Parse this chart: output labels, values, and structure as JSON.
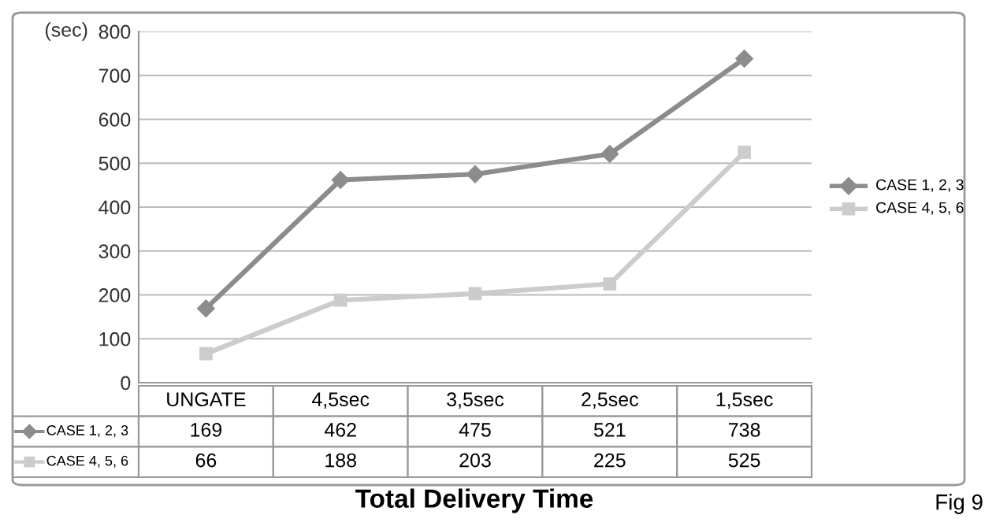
{
  "chart_data": {
    "type": "line",
    "title": "Total Delivery Time",
    "ylabel": "(sec)",
    "categories": [
      "UNGATE",
      "4,5sec",
      "3,5sec",
      "2,5sec",
      "1,5sec"
    ],
    "series": [
      {
        "name": "CASE 1, 2, 3",
        "color": "#8c8c8c",
        "marker": "diamond",
        "values": [
          169,
          462,
          475,
          521,
          738
        ]
      },
      {
        "name": "CASE 4, 5, 6",
        "color": "#cccccc",
        "marker": "square",
        "values": [
          66,
          188,
          203,
          225,
          525
        ]
      }
    ],
    "ylim": [
      0,
      800
    ],
    "yticks": [
      0,
      100,
      200,
      300,
      400,
      500,
      600,
      700,
      800
    ],
    "grid": "y",
    "legend": "right",
    "data_labels": true,
    "line_style": "solid",
    "annotations": [
      "Fig 9"
    ]
  }
}
